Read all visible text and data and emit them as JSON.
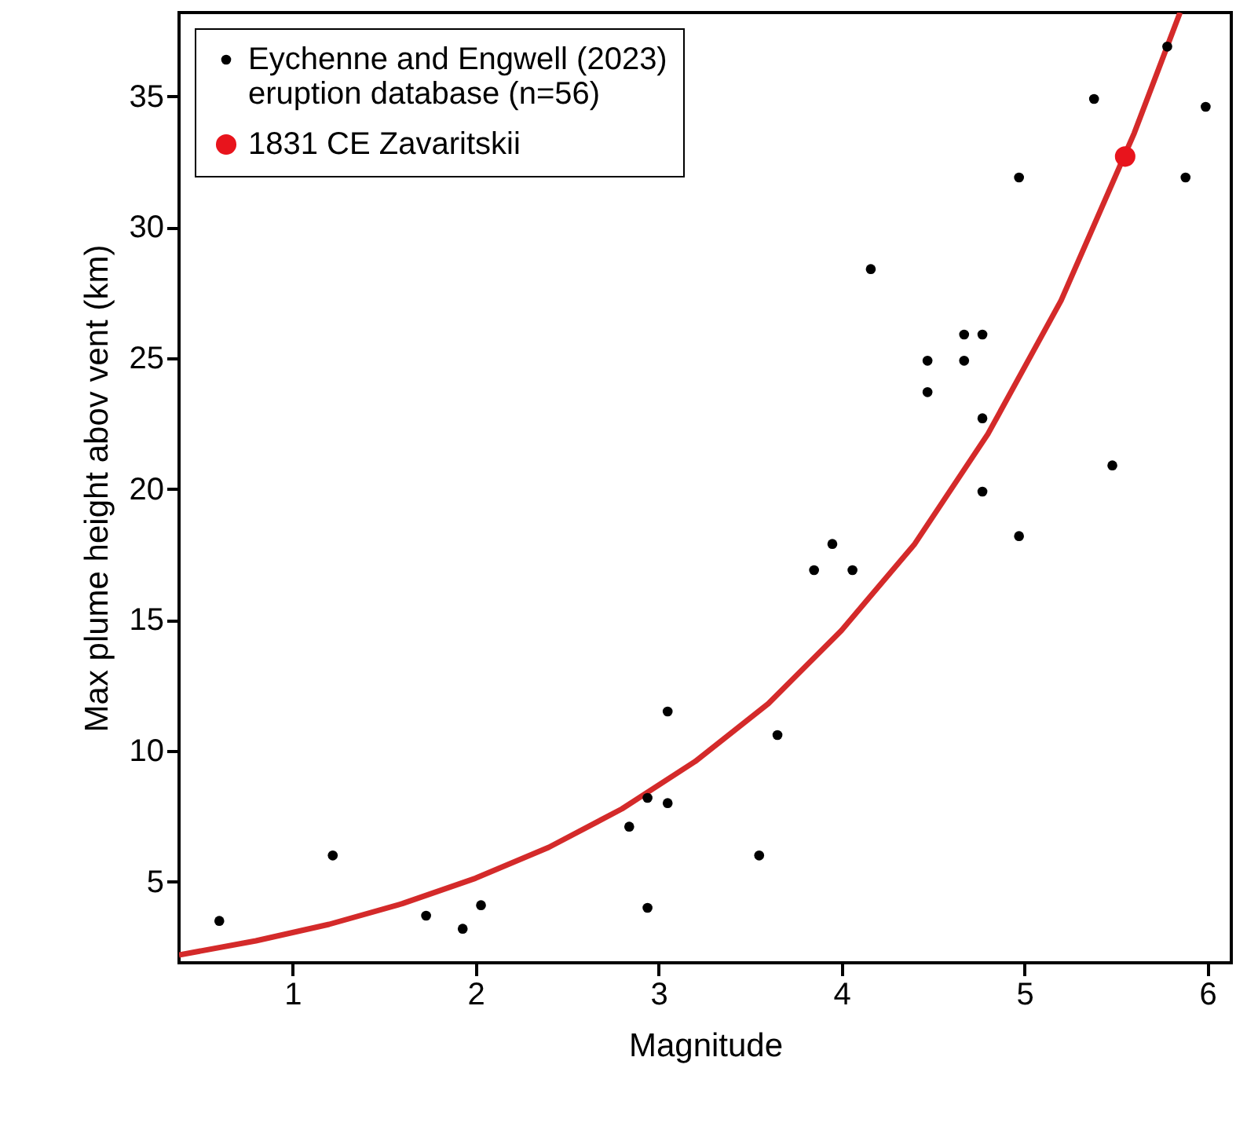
{
  "chart_data": {
    "type": "scatter",
    "xlabel": "Magnitude",
    "ylabel": "Max plume height abov vent (km)",
    "xlim": [
      0.38,
      6.13
    ],
    "ylim": [
      1.9,
      38.2
    ],
    "xticks": [
      1,
      2,
      3,
      4,
      5,
      6
    ],
    "yticks": [
      5,
      10,
      15,
      20,
      25,
      30,
      35
    ],
    "grid": false,
    "legend": "top left",
    "marker": "circle",
    "series": [
      {
        "name": "Eychenne and Engwell (2023)\neruption database (n=56)",
        "color": "#000000",
        "x": [
          0.6,
          1.22,
          1.73,
          1.93,
          2.03,
          2.84,
          2.94,
          2.94,
          3.05,
          3.05,
          3.55,
          3.65,
          3.85,
          3.95,
          4.06,
          4.16,
          4.47,
          4.47,
          4.67,
          4.67,
          4.77,
          4.77,
          4.77,
          4.97,
          4.97,
          5.38,
          5.48,
          5.78,
          5.88,
          5.99
        ],
        "values": [
          3.5,
          6.0,
          3.7,
          3.2,
          4.1,
          7.1,
          8.2,
          4.0,
          8.0,
          11.5,
          6.0,
          10.6,
          16.9,
          17.9,
          16.9,
          28.4,
          24.9,
          23.7,
          25.9,
          24.9,
          25.9,
          22.7,
          19.9,
          18.2,
          31.9,
          34.9,
          20.9,
          36.9,
          31.9,
          34.6
        ]
      },
      {
        "name": "1831 CE Zavaritskii",
        "color": "#e8141c",
        "x": [
          5.55
        ],
        "values": [
          32.7
        ]
      },
      {
        "type": "line",
        "color": "#d42a2a",
        "marker": "none",
        "line_style": "solid",
        "x": [
          0.38,
          0.8,
          1.2,
          1.6,
          2.0,
          2.4,
          2.8,
          3.2,
          3.6,
          4.0,
          4.4,
          4.8,
          5.2,
          5.6,
          5.85
        ],
        "values": [
          2.2,
          2.74,
          3.37,
          4.16,
          5.13,
          6.31,
          7.78,
          9.59,
          11.8,
          14.6,
          17.9,
          22.1,
          27.2,
          33.6,
          38.2
        ]
      }
    ]
  }
}
